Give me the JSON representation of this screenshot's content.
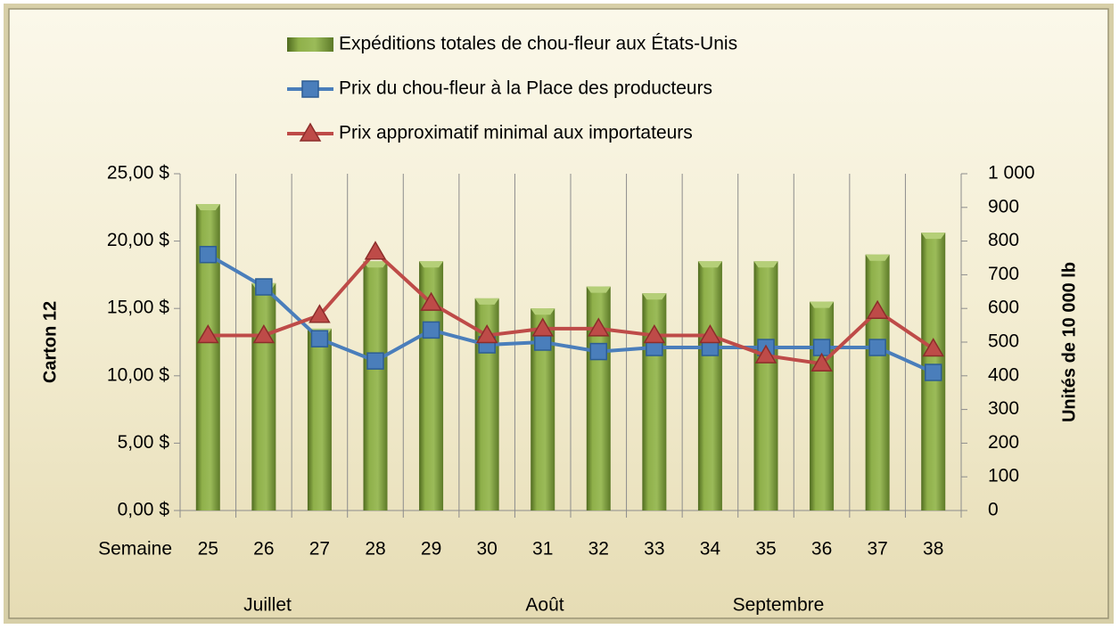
{
  "chart_data": {
    "type": "bar-line",
    "legend": [
      "Expéditions totales de chou-fleur aux États-Unis",
      "Prix du chou-fleur à la Place des producteurs",
      "Prix approximatif minimal aux importateurs"
    ],
    "legend_position": "top",
    "x_label": "Semaine",
    "month_labels": [
      "Juillet",
      "Août",
      "Septembre"
    ],
    "y_label": "Carton 12",
    "y2_label": "Unités de 10 000 lb",
    "categories": [
      "25",
      "26",
      "27",
      "28",
      "29",
      "30",
      "31",
      "32",
      "33",
      "34",
      "35",
      "36",
      "37",
      "38"
    ],
    "series": [
      {
        "name": "Expéditions totales de chou-fleur aux États-Unis",
        "type": "bar",
        "axis": "y2",
        "color": "#7a9a3a",
        "values": [
          910,
          675,
          540,
          740,
          740,
          630,
          600,
          665,
          645,
          740,
          740,
          620,
          760,
          825
        ]
      },
      {
        "name": "Prix du chou-fleur à la Place des producteurs",
        "type": "line",
        "marker": "square",
        "color": "#4a7ebb",
        "values": [
          19.0,
          16.6,
          12.75,
          11.1,
          13.4,
          12.3,
          12.5,
          11.8,
          12.1,
          12.1,
          12.1,
          12.1,
          12.1,
          10.25
        ]
      },
      {
        "name": "Prix approximatif minimal aux importateurs",
        "type": "line",
        "marker": "triangle",
        "color": "#be4b48",
        "values": [
          13.0,
          13.0,
          14.5,
          19.2,
          15.4,
          13.0,
          13.5,
          13.5,
          13.0,
          13.0,
          11.5,
          10.9,
          14.8,
          12.0
        ]
      }
    ],
    "ylim": [
      0,
      25
    ],
    "yticks": [
      {
        "value": 0,
        "label": "0,00 $"
      },
      {
        "value": 5,
        "label": "5,00 $"
      },
      {
        "value": 10,
        "label": "10,00 $"
      },
      {
        "value": 15,
        "label": "15,00 $"
      },
      {
        "value": 20,
        "label": "20,00 $"
      },
      {
        "value": 25,
        "label": "25,00 $"
      }
    ],
    "y2lim": [
      0,
      1000
    ],
    "y2ticks": [
      0,
      100,
      200,
      300,
      400,
      500,
      600,
      700,
      800,
      900,
      {
        "value": 1000,
        "label": "1 000"
      }
    ],
    "grid": "vertical"
  }
}
